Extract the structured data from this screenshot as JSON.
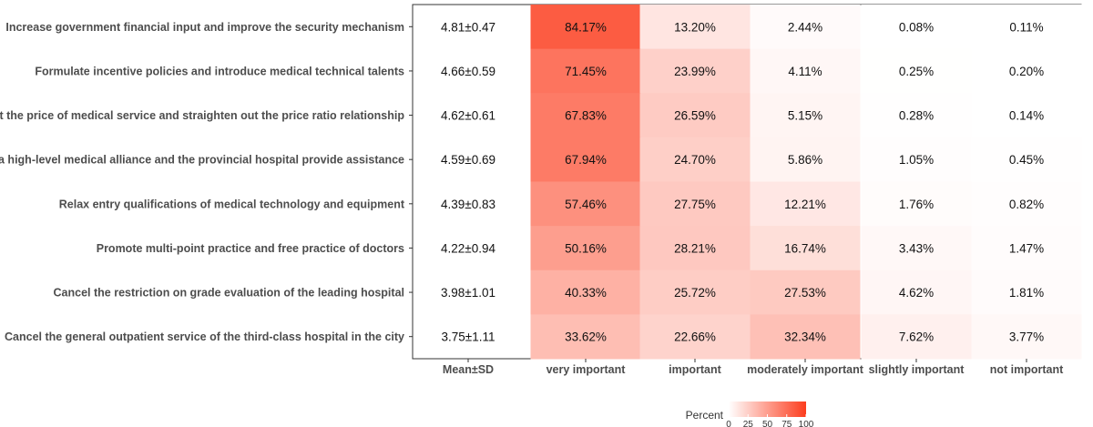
{
  "chart_data": {
    "type": "heatmap",
    "title": "",
    "xlabel": "",
    "ylabel": "",
    "columns": [
      "Mean±SD",
      "very important",
      "important",
      "moderately important",
      "slightly important",
      "not important"
    ],
    "rows": [
      {
        "label": "Increase government financial input and improve the security mechanism",
        "mean_sd": "4.81±0.47",
        "values": [
          84.17,
          13.2,
          2.44,
          0.08,
          0.11
        ],
        "texts": [
          "84.17%",
          "13.20%",
          "2.44%",
          "0.08%",
          "0.11%"
        ]
      },
      {
        "label": "Formulate incentive policies and introduce medical technical talents",
        "mean_sd": "4.66±0.59",
        "values": [
          71.45,
          23.99,
          4.11,
          0.25,
          0.2
        ],
        "texts": [
          "71.45%",
          "23.99%",
          "4.11%",
          "0.25%",
          "0.20%"
        ]
      },
      {
        "label": "Adjust the price of medical service and straighten out the price ratio relationship",
        "mean_sd": "4.62±0.61",
        "values": [
          67.83,
          26.59,
          5.15,
          0.28,
          0.14
        ],
        "texts": [
          "67.83%",
          "26.59%",
          "5.15%",
          "0.28%",
          "0.14%"
        ]
      },
      {
        "label": "Set up a high-level medical alliance and the provincial hospital provide assistance",
        "mean_sd": "4.59±0.69",
        "values": [
          67.94,
          24.7,
          5.86,
          1.05,
          0.45
        ],
        "texts": [
          "67.94%",
          "24.70%",
          "5.86%",
          "1.05%",
          "0.45%"
        ]
      },
      {
        "label": "Relax entry qualifications of medical technology and equipment",
        "mean_sd": "4.39±0.83",
        "values": [
          57.46,
          27.75,
          12.21,
          1.76,
          0.82
        ],
        "texts": [
          "57.46%",
          "27.75%",
          "12.21%",
          "1.76%",
          "0.82%"
        ]
      },
      {
        "label": "Promote multi-point practice and free practice of doctors",
        "mean_sd": "4.22±0.94",
        "values": [
          50.16,
          28.21,
          16.74,
          3.43,
          1.47
        ],
        "texts": [
          "50.16%",
          "28.21%",
          "16.74%",
          "3.43%",
          "1.47%"
        ]
      },
      {
        "label": "Cancel the restriction on grade evaluation of the leading hospital",
        "mean_sd": "3.98±1.01",
        "values": [
          40.33,
          25.72,
          27.53,
          4.62,
          1.81
        ],
        "texts": [
          "40.33%",
          "25.72%",
          "27.53%",
          "4.62%",
          "1.81%"
        ]
      },
      {
        "label": "Cancel the general outpatient service of the third-class hospital in the city",
        "mean_sd": "3.75±1.11",
        "values": [
          33.62,
          22.66,
          32.34,
          7.62,
          3.77
        ],
        "texts": [
          "33.62%",
          "22.66%",
          "32.34%",
          "7.62%",
          "3.77%"
        ]
      }
    ],
    "legend": {
      "title": "Percent",
      "ticks": [
        "0",
        "25",
        "50",
        "75",
        "100"
      ],
      "range": [
        0,
        100
      ],
      "low_color": "#ffffff",
      "high_color": "#fc3d1e",
      "position": "bottom"
    }
  }
}
